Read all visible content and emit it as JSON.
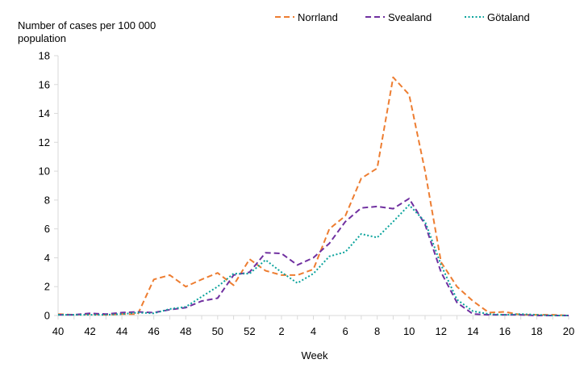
{
  "chart_data": {
    "type": "line",
    "title": "",
    "ylabel": "Number of cases per 100 000 population",
    "xlabel": "Week",
    "ylim": [
      0,
      18
    ],
    "yticks": [
      0,
      2,
      4,
      6,
      8,
      10,
      12,
      14,
      16,
      18
    ],
    "x_tick_labels": [
      "40",
      "42",
      "44",
      "46",
      "48",
      "50",
      "52",
      "2",
      "4",
      "6",
      "8",
      "10",
      "12",
      "14",
      "16",
      "18",
      "20"
    ],
    "weeks": [
      "40",
      "41",
      "42",
      "43",
      "44",
      "45",
      "46",
      "47",
      "48",
      "49",
      "50",
      "51",
      "52",
      "1",
      "2",
      "3",
      "4",
      "5",
      "6",
      "7",
      "8",
      "9",
      "10",
      "11",
      "12",
      "13",
      "14",
      "15",
      "16",
      "17",
      "18",
      "19",
      "20"
    ],
    "legend_position": "top",
    "grid": false,
    "series": [
      {
        "name": "Norrland",
        "color": "#ED7D31",
        "dash": "dashed",
        "values": [
          0.1,
          0.05,
          0.1,
          0.05,
          0.1,
          0.1,
          2.5,
          2.8,
          2.0,
          2.5,
          2.95,
          2.1,
          3.9,
          3.1,
          2.8,
          2.8,
          3.2,
          6.0,
          6.9,
          9.5,
          10.2,
          16.5,
          15.3,
          10.0,
          3.7,
          2.0,
          1.0,
          0.2,
          0.25,
          0.05,
          0.05,
          0.05,
          0.0
        ]
      },
      {
        "name": "Svealand",
        "color": "#7030A0",
        "dash": "dashed",
        "values": [
          0.05,
          0.05,
          0.15,
          0.1,
          0.2,
          0.25,
          0.2,
          0.4,
          0.55,
          1.0,
          1.2,
          2.8,
          3.0,
          4.35,
          4.3,
          3.5,
          4.0,
          5.0,
          6.5,
          7.45,
          7.55,
          7.4,
          8.1,
          6.3,
          3.0,
          0.9,
          0.1,
          0.05,
          0.05,
          0.05,
          0.0,
          0.0,
          0.0
        ]
      },
      {
        "name": "Götaland",
        "color": "#0AA39C",
        "dash": "dotted",
        "values": [
          0.05,
          0.05,
          0.05,
          0.05,
          0.1,
          0.2,
          0.15,
          0.45,
          0.6,
          1.3,
          2.0,
          2.9,
          2.9,
          3.85,
          3.0,
          2.25,
          2.9,
          4.1,
          4.4,
          5.65,
          5.4,
          6.5,
          7.65,
          6.5,
          3.5,
          1.1,
          0.3,
          0.1,
          0.05,
          0.1,
          0.05,
          0.0,
          0.0
        ]
      }
    ]
  }
}
